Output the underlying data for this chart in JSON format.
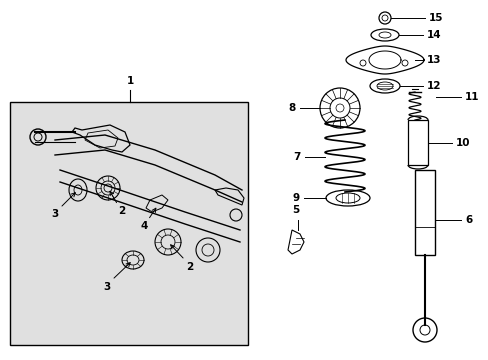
{
  "bg_color": "#ffffff",
  "box_color": "#e0e0e0",
  "line_color": "#000000",
  "fig_w": 4.89,
  "fig_h": 3.6,
  "dpi": 100,
  "label_fs": 7.5,
  "label_fs_sm": 6.5
}
